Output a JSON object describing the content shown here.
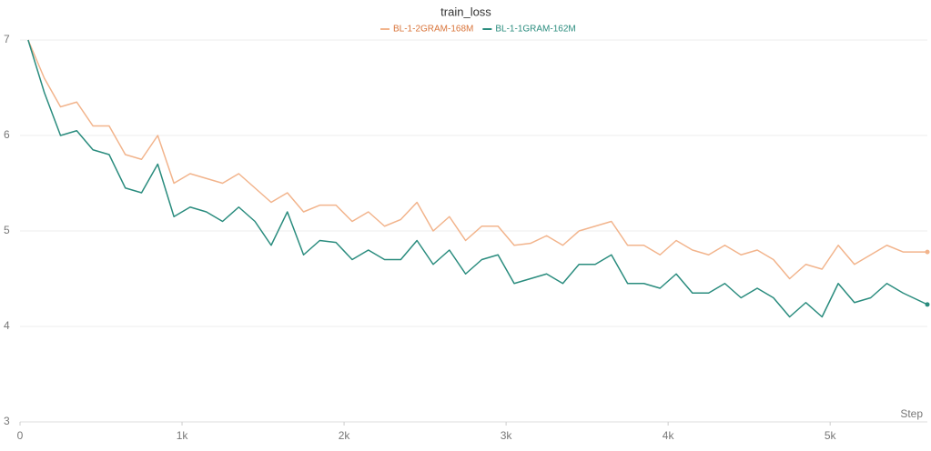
{
  "chart_data": {
    "type": "line",
    "title": "train_loss",
    "xlabel": "Step",
    "x": [
      50,
      150,
      250,
      350,
      450,
      550,
      650,
      750,
      850,
      950,
      1050,
      1150,
      1250,
      1350,
      1450,
      1550,
      1650,
      1750,
      1850,
      1950,
      2050,
      2150,
      2250,
      2350,
      2450,
      2550,
      2650,
      2750,
      2850,
      2950,
      3050,
      3150,
      3250,
      3350,
      3450,
      3550,
      3650,
      3750,
      3850,
      3950,
      4050,
      4150,
      4250,
      4350,
      4450,
      4550,
      4650,
      4750,
      4850,
      4950,
      5050,
      5150,
      5250,
      5350,
      5450,
      5600
    ],
    "series": [
      {
        "name": "BL-1-2GRAM-168M",
        "color": "#f2b48c",
        "label_color": "#d9743a",
        "values": [
          7.0,
          6.6,
          6.3,
          6.35,
          6.1,
          6.1,
          5.8,
          5.75,
          6.0,
          5.5,
          5.6,
          5.55,
          5.5,
          5.6,
          5.45,
          5.3,
          5.4,
          5.2,
          5.27,
          5.27,
          5.1,
          5.2,
          5.05,
          5.12,
          5.3,
          5.0,
          5.15,
          4.9,
          5.05,
          5.05,
          4.85,
          4.87,
          4.95,
          4.85,
          5.0,
          5.05,
          5.1,
          4.85,
          4.85,
          4.75,
          4.9,
          4.8,
          4.75,
          4.85,
          4.75,
          4.8,
          4.7,
          4.5,
          4.65,
          4.6,
          4.85,
          4.65,
          4.75,
          4.85,
          4.78,
          4.78
        ]
      },
      {
        "name": "BL-1-1GRAM-162M",
        "color": "#2a8c7e",
        "label_color": "#2a8c7e",
        "values": [
          7.0,
          6.45,
          6.0,
          6.05,
          5.85,
          5.8,
          5.45,
          5.4,
          5.7,
          5.15,
          5.25,
          5.2,
          5.1,
          5.25,
          5.1,
          4.85,
          5.2,
          4.75,
          4.9,
          4.88,
          4.7,
          4.8,
          4.7,
          4.7,
          4.9,
          4.65,
          4.8,
          4.55,
          4.7,
          4.75,
          4.45,
          4.5,
          4.55,
          4.45,
          4.65,
          4.65,
          4.75,
          4.45,
          4.45,
          4.4,
          4.55,
          4.35,
          4.35,
          4.45,
          4.3,
          4.4,
          4.3,
          4.1,
          4.25,
          4.1,
          4.45,
          4.25,
          4.3,
          4.45,
          4.35,
          4.23
        ]
      }
    ],
    "xlim": [
      0,
      5600
    ],
    "xticks": [
      0,
      {
        "value": 1000,
        "label": "1k"
      },
      {
        "value": 2000,
        "label": "2k"
      },
      {
        "value": 3000,
        "label": "3k"
      },
      {
        "value": 4000,
        "label": "4k"
      },
      {
        "value": 5000,
        "label": "5k"
      }
    ],
    "ylim": [
      3,
      7
    ],
    "yticks": [
      3,
      4,
      5,
      6,
      7
    ],
    "grid": true
  }
}
